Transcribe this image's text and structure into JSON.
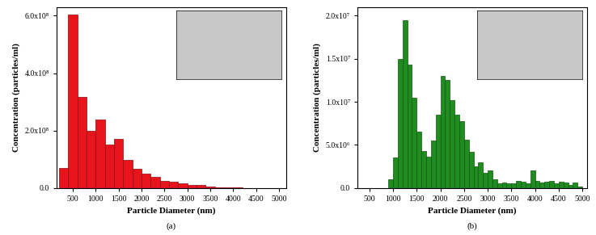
{
  "chart_data": [
    {
      "type": "histogram",
      "panel_label": "(a)",
      "x_label": "Particle Diameter (nm)",
      "y_label": "Concentration (particles/ml)",
      "color": "#e8141b",
      "bins": [
        200,
        400,
        600,
        800,
        1000,
        1200,
        1400,
        1600,
        1800,
        2000,
        2200,
        2400,
        2600,
        2800,
        3000,
        3200,
        3400,
        3600,
        3800,
        4000,
        4200,
        4400,
        4600,
        4800,
        5000
      ],
      "values": [
        70000000,
        605000000,
        318000000,
        200000000,
        238000000,
        152000000,
        172000000,
        97000000,
        67000000,
        50000000,
        38000000,
        24000000,
        22000000,
        17000000,
        12000000,
        10000000,
        6000000,
        3000000,
        2000000,
        1000000,
        500000,
        300000,
        200000,
        100000
      ],
      "xlim": [
        150,
        5150
      ],
      "xticks": [
        500,
        1000,
        1500,
        2000,
        2500,
        3000,
        3500,
        4000,
        4500,
        5000
      ],
      "ylim": [
        0,
        630000000
      ],
      "yticks": [
        {
          "value": 0,
          "label": "0.0"
        },
        {
          "value": 200000000,
          "label": "2.0x10⁸"
        },
        {
          "value": 400000000,
          "label": "4.0x10⁸"
        },
        {
          "value": 600000000,
          "label": "6.0x10⁸"
        }
      ]
    },
    {
      "type": "histogram",
      "panel_label": "(b)",
      "x_label": "Particle Diameter (nm)",
      "y_label": "Concentration (particles/ml)",
      "color": "#1e8c1e",
      "bins": [
        900,
        1000,
        1100,
        1200,
        1300,
        1400,
        1500,
        1600,
        1700,
        1800,
        1900,
        2000,
        2100,
        2200,
        2300,
        2400,
        2500,
        2600,
        2700,
        2800,
        2900,
        3000,
        3100,
        3200,
        3300,
        3400,
        3500,
        3600,
        3700,
        3800,
        3900,
        4000,
        4100,
        4200,
        4300,
        4400,
        4500,
        4600,
        4700,
        4800,
        4900,
        5000
      ],
      "values": [
        1000000,
        3500000,
        15000000,
        19500000,
        14300000,
        10500000,
        6500000,
        4300000,
        3600000,
        5500000,
        8500000,
        13000000,
        12500000,
        10200000,
        8500000,
        7800000,
        5600000,
        4200000,
        2500000,
        3000000,
        1800000,
        2000000,
        1000000,
        500000,
        600000,
        500000,
        500000,
        800000,
        700000,
        500000,
        2000000,
        800000,
        600000,
        700000,
        800000,
        500000,
        700000,
        600000,
        400000,
        600000,
        200000
      ],
      "xlim": [
        250,
        5100
      ],
      "xticks": [
        500,
        1000,
        1500,
        2000,
        2500,
        3000,
        3500,
        4000,
        4500,
        5000
      ],
      "ylim": [
        0,
        21000000
      ],
      "yticks": [
        {
          "value": 0,
          "label": "0.0"
        },
        {
          "value": 5000000,
          "label": "5.0x10⁶"
        },
        {
          "value": 10000000,
          "label": "1.0x10⁷"
        },
        {
          "value": 15000000,
          "label": "1.5x10⁷"
        },
        {
          "value": 20000000,
          "label": "2.0x10⁷"
        }
      ]
    }
  ]
}
